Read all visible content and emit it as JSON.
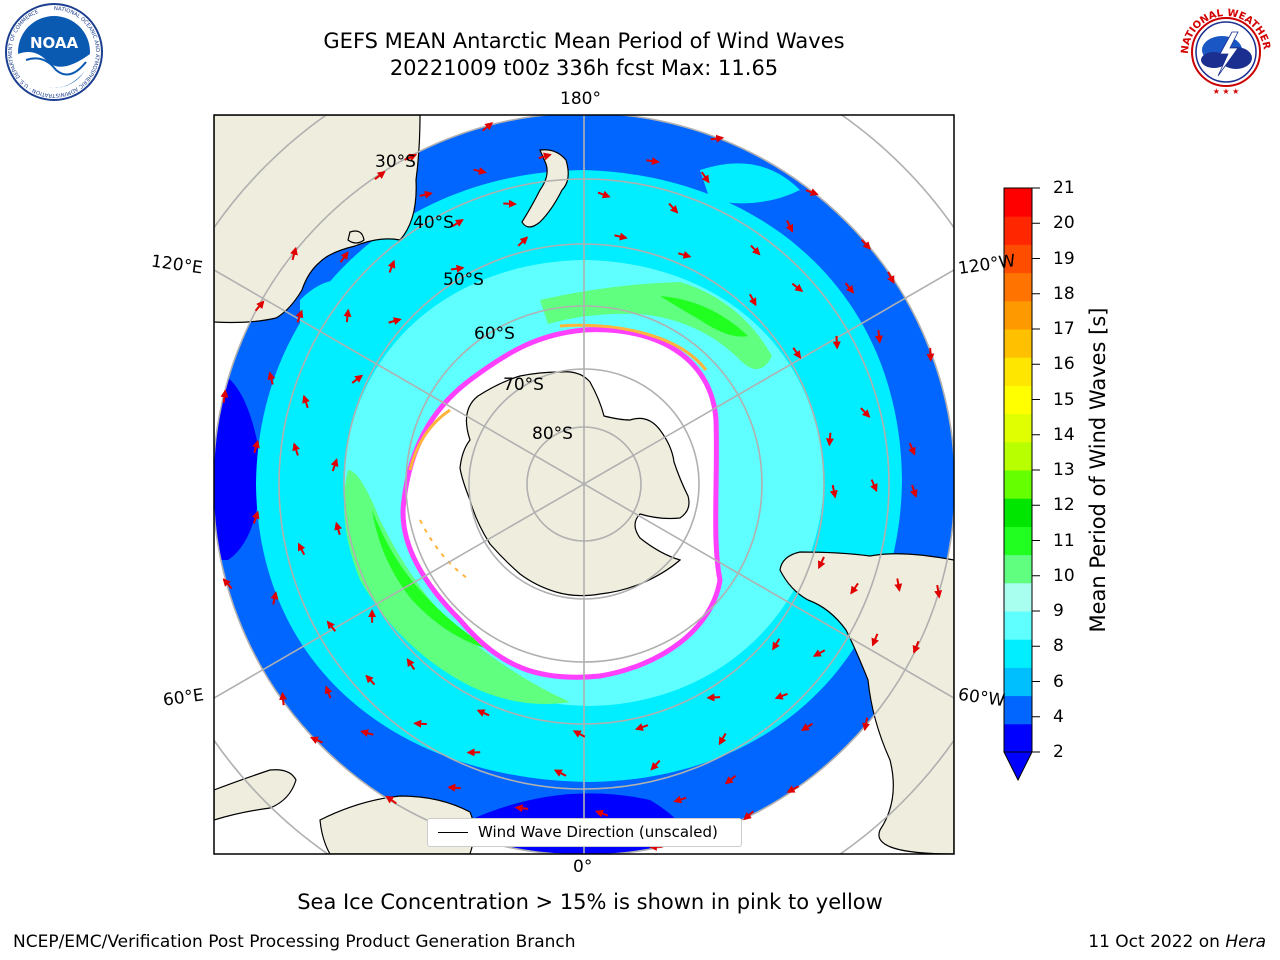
{
  "header": {
    "title_line1": "GEFS MEAN Antarctic Mean Period of Wind Waves",
    "title_line2": "20221009 t00z 336h fcst   Max: 11.65"
  },
  "logos": {
    "left": {
      "icon": "noaa-logo-icon",
      "text": "NOAA",
      "ring_text": "NATIONAL OCEANIC AND ATMOSPHERIC ADMINISTRATION · U.S. DEPARTMENT OF COMMERCE"
    },
    "right": {
      "icon": "nws-logo-icon",
      "ring_text": "NATIONAL WEATHER SERVICE"
    }
  },
  "map": {
    "projection": "south-polar-stereographic",
    "lon_labels": {
      "top": "180°",
      "bottom": "0°",
      "upper_left": "120°E",
      "upper_right": "120°W",
      "lower_left": "60°E",
      "lower_right": "60°W"
    },
    "lat_labels": [
      "30°S",
      "40°S",
      "50°S",
      "60°S",
      "70°S",
      "80°S"
    ],
    "colors": {
      "land": "#efedde",
      "ice": "#ffffff",
      "ice_edge_pink": "#ff40ff",
      "ice_edge_orange": "#ffb43c",
      "arrow": "#e00000",
      "grid": "#b0b0b0"
    },
    "legend_label": "Wind Wave Direction (unscaled)"
  },
  "colorbar": {
    "title": "Mean Period of Wind Waves [s]",
    "ticks": [
      "21",
      "20",
      "19",
      "18",
      "17",
      "16",
      "15",
      "14",
      "13",
      "12",
      "11",
      "10",
      "9",
      "8",
      "6",
      "4",
      "2"
    ],
    "colors": [
      "#0000ff",
      "#0066ff",
      "#00bfff",
      "#00eeff",
      "#60ffff",
      "#a8fff0",
      "#60ff80",
      "#20ff20",
      "#00e600",
      "#66ff00",
      "#b8ff00",
      "#e0ff00",
      "#ffff00",
      "#ffe600",
      "#ffc000",
      "#ff9900",
      "#ff7300",
      "#ff4d00",
      "#ff2600",
      "#ff0000"
    ],
    "extend": "min"
  },
  "notes": {
    "sea_ice": "Sea Ice Concentration > 15% is shown in pink to yellow"
  },
  "footer": {
    "left": "NCEP/EMC/Verification Post Processing Product Generation Branch",
    "date": "11 Oct 2022 on ",
    "host": "Hera"
  }
}
